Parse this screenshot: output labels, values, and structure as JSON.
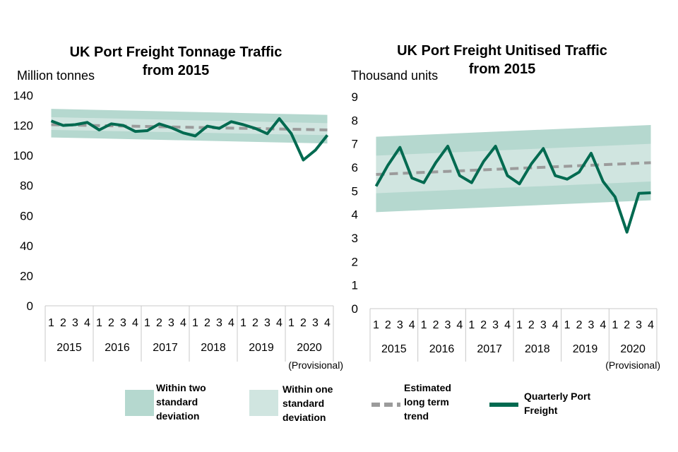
{
  "chart_data": [
    {
      "type": "line",
      "title_line1": "UK Port Freight Tonnage Traffic",
      "title_line2": "from 2015",
      "ylabel": "Million tonnes",
      "ylim": [
        0,
        140
      ],
      "yticks": [
        "0",
        "20",
        "40",
        "60",
        "80",
        "100",
        "120",
        "140"
      ],
      "quarters": [
        "1",
        "2",
        "3",
        "4"
      ],
      "years": [
        "2015",
        "2016",
        "2017",
        "2018",
        "2019",
        "2020"
      ],
      "note": "(Provisional)",
      "series": [
        {
          "name": "Quarterly Port Freight",
          "values": [
            123,
            120,
            120.5,
            122,
            117,
            121,
            120,
            116,
            116.5,
            121,
            118.5,
            115,
            113,
            119.5,
            118,
            122.5,
            120.5,
            118,
            114.5,
            124.5,
            114.5,
            97,
            103.5,
            113.5
          ]
        },
        {
          "name": "Estimated long term trend",
          "start": 120.5,
          "end": 117
        },
        {
          "name": "Within one standard deviation",
          "lower_start": 117,
          "lower_end": 113.5,
          "upper_start": 125.5,
          "upper_end": 121.5
        },
        {
          "name": "Within two standard deviation",
          "lower_start": 112,
          "lower_end": 108,
          "upper_start": 131,
          "upper_end": 127
        }
      ]
    },
    {
      "type": "line",
      "title_line1": "UK Port Freight Unitised Traffic",
      "title_line2": "from 2015",
      "ylabel": "Thousand units",
      "ylim": [
        0,
        9
      ],
      "yticks": [
        "0",
        "1",
        "2",
        "3",
        "4",
        "5",
        "6",
        "7",
        "8",
        "9"
      ],
      "quarters": [
        "1",
        "2",
        "3",
        "4"
      ],
      "years": [
        "2015",
        "2016",
        "2017",
        "2018",
        "2019",
        "2020"
      ],
      "note": "(Provisional)",
      "series": [
        {
          "name": "Quarterly Port Freight",
          "values": [
            5.2,
            6.1,
            6.85,
            5.55,
            5.35,
            6.2,
            6.9,
            5.65,
            5.35,
            6.25,
            6.9,
            5.65,
            5.3,
            6.15,
            6.8,
            5.65,
            5.5,
            5.8,
            6.6,
            5.4,
            4.75,
            3.25,
            4.9,
            4.92
          ]
        },
        {
          "name": "Estimated long term trend",
          "start": 5.7,
          "end": 6.2
        },
        {
          "name": "Within one standard deviation",
          "lower_start": 4.9,
          "lower_end": 5.4,
          "upper_start": 6.5,
          "upper_end": 7.0
        },
        {
          "name": "Within two standard deviation",
          "lower_start": 4.1,
          "lower_end": 4.6,
          "upper_start": 7.3,
          "upper_end": 7.8
        }
      ]
    }
  ],
  "legend": {
    "two_sd": [
      "Within two",
      "standard",
      "deviation"
    ],
    "one_sd": [
      "Within one",
      "standard",
      "deviation"
    ],
    "trend": [
      "Estimated",
      "long term",
      "trend"
    ],
    "freight": [
      "Quarterly Port",
      "Freight"
    ]
  },
  "colors": {
    "two_sd_band": "#b5d8cf",
    "one_sd_band": "#d0e5e0",
    "freight_line": "#006a50",
    "trend_line": "#9b9b9b",
    "axis": "#c8c8c8"
  }
}
